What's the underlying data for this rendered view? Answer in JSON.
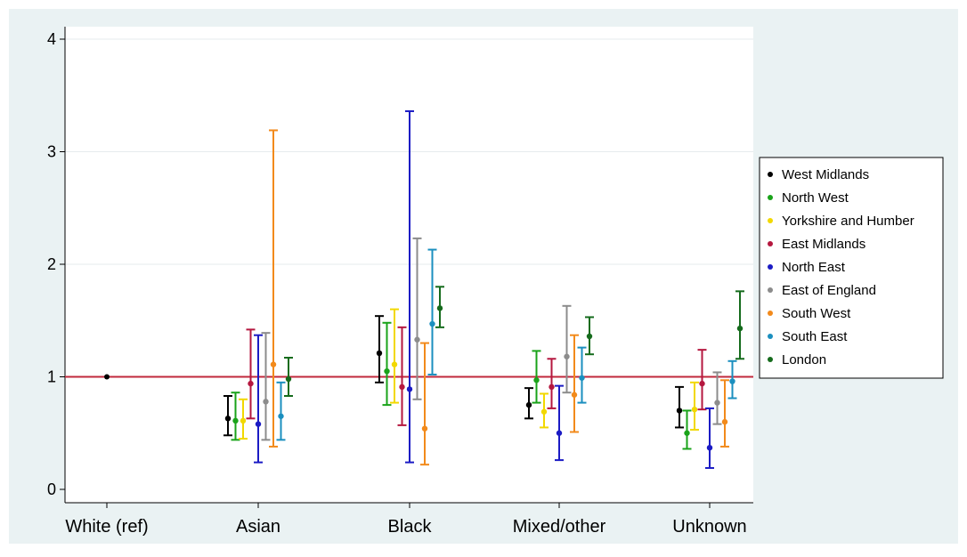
{
  "chart_data": {
    "type": "scatter",
    "subtype": "point-estimates-with-error-bars",
    "categories": [
      "White (ref)",
      "Asian",
      "Black",
      "Mixed/other",
      "Unknown"
    ],
    "ylim": [
      0,
      4
    ],
    "yticks": [
      0,
      1,
      2,
      3,
      4
    ],
    "reference_line": 1,
    "grid": true,
    "legend_position": "right",
    "reference_point": {
      "category": "White (ref)",
      "value": 1,
      "color": "#000000"
    },
    "series": [
      {
        "name": "West Midlands",
        "color": "#000000",
        "points": [
          {
            "est": 0.63,
            "lo": 0.48,
            "hi": 0.83
          },
          {
            "est": 1.21,
            "lo": 0.95,
            "hi": 1.54
          },
          {
            "est": 0.75,
            "lo": 0.63,
            "hi": 0.9
          },
          {
            "est": 0.7,
            "lo": 0.55,
            "hi": 0.91
          }
        ]
      },
      {
        "name": "North West",
        "color": "#1aa31a",
        "points": [
          {
            "est": 0.61,
            "lo": 0.44,
            "hi": 0.86
          },
          {
            "est": 1.05,
            "lo": 0.75,
            "hi": 1.48
          },
          {
            "est": 0.97,
            "lo": 0.77,
            "hi": 1.23
          },
          {
            "est": 0.5,
            "lo": 0.36,
            "hi": 0.7
          }
        ]
      },
      {
        "name": "Yorkshire and Humber",
        "color": "#f2d800",
        "points": [
          {
            "est": 0.61,
            "lo": 0.45,
            "hi": 0.8
          },
          {
            "est": 1.11,
            "lo": 0.77,
            "hi": 1.6
          },
          {
            "est": 0.69,
            "lo": 0.55,
            "hi": 0.85
          },
          {
            "est": 0.71,
            "lo": 0.53,
            "hi": 0.95
          }
        ]
      },
      {
        "name": "East Midlands",
        "color": "#b5173f",
        "points": [
          {
            "est": 0.94,
            "lo": 0.63,
            "hi": 1.42
          },
          {
            "est": 0.91,
            "lo": 0.57,
            "hi": 1.44
          },
          {
            "est": 0.91,
            "lo": 0.72,
            "hi": 1.16
          },
          {
            "est": 0.94,
            "lo": 0.71,
            "hi": 1.24
          }
        ]
      },
      {
        "name": "North East",
        "color": "#1b1bc4",
        "points": [
          {
            "est": 0.58,
            "lo": 0.24,
            "hi": 1.37
          },
          {
            "est": 0.89,
            "lo": 0.24,
            "hi": 3.36
          },
          {
            "est": 0.5,
            "lo": 0.26,
            "hi": 0.92
          },
          {
            "est": 0.37,
            "lo": 0.19,
            "hi": 0.72
          }
        ]
      },
      {
        "name": "East of England",
        "color": "#8c8c8c",
        "points": [
          {
            "est": 0.78,
            "lo": 0.44,
            "hi": 1.39
          },
          {
            "est": 1.33,
            "lo": 0.8,
            "hi": 2.23
          },
          {
            "est": 1.18,
            "lo": 0.86,
            "hi": 1.63
          },
          {
            "est": 0.77,
            "lo": 0.58,
            "hi": 1.04
          }
        ]
      },
      {
        "name": "South West",
        "color": "#f28a1b",
        "points": [
          {
            "est": 1.11,
            "lo": 0.38,
            "hi": 3.19
          },
          {
            "est": 0.54,
            "lo": 0.22,
            "hi": 1.3
          },
          {
            "est": 0.84,
            "lo": 0.51,
            "hi": 1.37
          },
          {
            "est": 0.6,
            "lo": 0.38,
            "hi": 0.97
          }
        ]
      },
      {
        "name": "South East",
        "color": "#1b8fbf",
        "points": [
          {
            "est": 0.65,
            "lo": 0.44,
            "hi": 0.95
          },
          {
            "est": 1.47,
            "lo": 1.02,
            "hi": 2.13
          },
          {
            "est": 0.99,
            "lo": 0.77,
            "hi": 1.26
          },
          {
            "est": 0.96,
            "lo": 0.81,
            "hi": 1.14
          }
        ]
      },
      {
        "name": "London",
        "color": "#156b1c",
        "points": [
          {
            "est": 0.98,
            "lo": 0.83,
            "hi": 1.17
          },
          {
            "est": 1.61,
            "lo": 1.44,
            "hi": 1.8
          },
          {
            "est": 1.36,
            "lo": 1.2,
            "hi": 1.53
          },
          {
            "est": 1.43,
            "lo": 1.16,
            "hi": 1.76
          }
        ]
      }
    ],
    "colors": {
      "background": "#eaf2f3",
      "plot_area": "#ffffff",
      "reference_line": "#c0283c",
      "grid": "#e6ebed"
    }
  }
}
